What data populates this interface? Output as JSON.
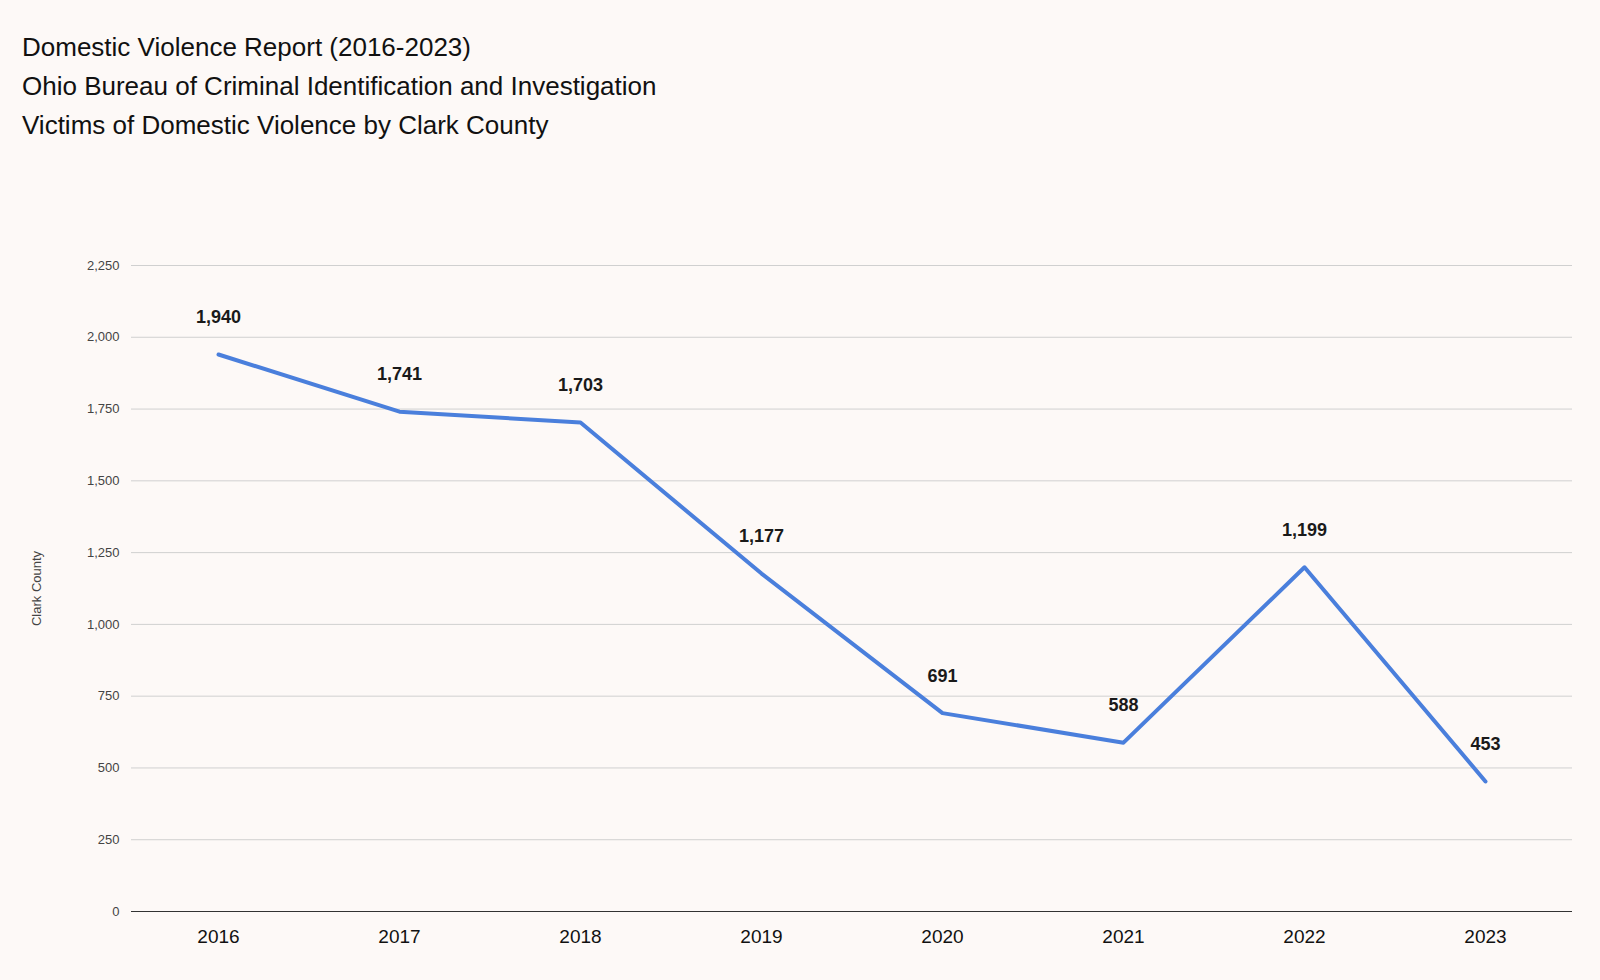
{
  "chart_data": {
    "type": "line",
    "title": [
      "Domestic Violence Report (2016-2023)",
      "Ohio Bureau of Criminal Identification and Investigation",
      "Victims of Domestic Violence by Clark County"
    ],
    "y_label": "Clark County",
    "categories": [
      "2016",
      "2017",
      "2018",
      "2019",
      "2020",
      "2021",
      "2022",
      "2023"
    ],
    "values": [
      1940,
      1741,
      1703,
      1177,
      691,
      588,
      1199,
      453
    ],
    "value_labels": [
      "1,940",
      "1,741",
      "1,703",
      "1,177",
      "691",
      "588",
      "1,199",
      "453"
    ],
    "color": "#4a7fdc",
    "ylim": [
      0,
      2250
    ],
    "yticks": [
      0,
      250,
      500,
      750,
      {
        "value": 1000,
        "label": "1,000"
      },
      {
        "value": 1250,
        "label": "1,250"
      },
      {
        "value": 1500,
        "label": "1,500"
      },
      {
        "value": 1750,
        "label": "1,750"
      },
      {
        "value": 2000,
        "label": "2,000"
      },
      {
        "value": 2250,
        "label": "2,250"
      }
    ],
    "grid": true,
    "data_labels": true
  }
}
